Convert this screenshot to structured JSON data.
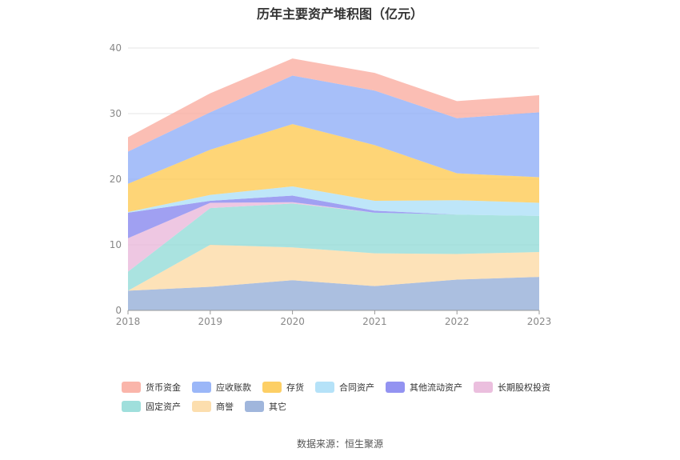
{
  "title": "历年主要资产堆积图（亿元）",
  "source": "数据来源：恒生聚源",
  "chart_data": {
    "type": "area",
    "stacked": true,
    "categories": [
      "2018",
      "2019",
      "2020",
      "2021",
      "2022",
      "2023"
    ],
    "ylim": [
      0,
      40
    ],
    "yticks": [
      0,
      10,
      20,
      30,
      40
    ],
    "grid": true,
    "legend_position": "bottom",
    "series": [
      {
        "name": "其它",
        "color": "#8fa9d6",
        "values": [
          3.0,
          3.6,
          4.6,
          3.7,
          4.7,
          5.1
        ]
      },
      {
        "name": "商誉",
        "color": "#fcd8a0",
        "values": [
          0.0,
          6.4,
          5.0,
          5.0,
          3.9,
          3.8
        ]
      },
      {
        "name": "固定资产",
        "color": "#8ed9d6",
        "values": [
          2.9,
          5.6,
          6.7,
          6.2,
          6.0,
          5.5
        ]
      },
      {
        "name": "长期股权投资",
        "color": "#e8b4d8",
        "values": [
          5.1,
          0.8,
          0.2,
          0.0,
          0.0,
          0.0
        ]
      },
      {
        "name": "其他流动资产",
        "color": "#8080ee",
        "values": [
          3.9,
          0.3,
          1.0,
          0.3,
          0.0,
          0.0
        ]
      },
      {
        "name": "合同资产",
        "color": "#a8ddf7",
        "values": [
          0.1,
          0.9,
          1.4,
          1.5,
          2.2,
          2.0
        ]
      },
      {
        "name": "存货",
        "color": "#fdc74a",
        "values": [
          4.3,
          6.9,
          9.5,
          8.5,
          4.1,
          3.9
        ]
      },
      {
        "name": "应收账款",
        "color": "#8aaaf7",
        "values": [
          4.9,
          5.7,
          7.4,
          8.3,
          8.4,
          9.9
        ]
      },
      {
        "name": "货币资金",
        "color": "#f9a89b",
        "values": [
          2.2,
          2.9,
          2.6,
          2.7,
          2.6,
          2.6
        ]
      }
    ]
  },
  "legend_order": [
    "货币资金",
    "应收账款",
    "存货",
    "合同资产",
    "其他流动资产",
    "长期股权投资",
    "固定资产",
    "商誉",
    "其它"
  ]
}
